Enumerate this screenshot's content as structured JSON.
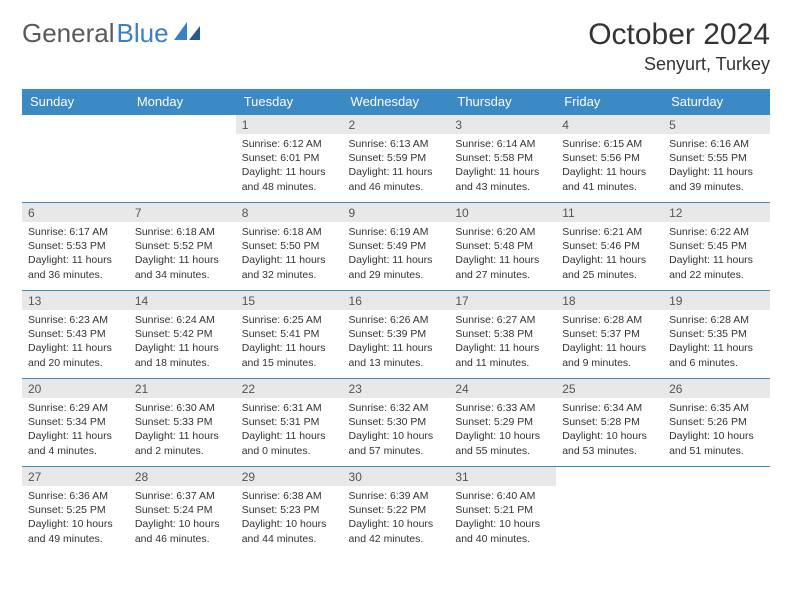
{
  "brand": {
    "part1": "General",
    "part2": "Blue"
  },
  "header": {
    "title": "October 2024",
    "location": "Senyurt, Turkey"
  },
  "colors": {
    "header_bg": "#3b8ac4",
    "header_fg": "#ffffff",
    "daynum_bg": "#e8e8e8",
    "rule": "#3b8ac4",
    "brand_gray": "#5a5a5a",
    "brand_blue": "#3b7fc4"
  },
  "day_names": [
    "Sunday",
    "Monday",
    "Tuesday",
    "Wednesday",
    "Thursday",
    "Friday",
    "Saturday"
  ],
  "weeks": [
    [
      null,
      null,
      {
        "n": "1",
        "sunrise": "6:12 AM",
        "sunset": "6:01 PM",
        "daylight": "11 hours and 48 minutes."
      },
      {
        "n": "2",
        "sunrise": "6:13 AM",
        "sunset": "5:59 PM",
        "daylight": "11 hours and 46 minutes."
      },
      {
        "n": "3",
        "sunrise": "6:14 AM",
        "sunset": "5:58 PM",
        "daylight": "11 hours and 43 minutes."
      },
      {
        "n": "4",
        "sunrise": "6:15 AM",
        "sunset": "5:56 PM",
        "daylight": "11 hours and 41 minutes."
      },
      {
        "n": "5",
        "sunrise": "6:16 AM",
        "sunset": "5:55 PM",
        "daylight": "11 hours and 39 minutes."
      }
    ],
    [
      {
        "n": "6",
        "sunrise": "6:17 AM",
        "sunset": "5:53 PM",
        "daylight": "11 hours and 36 minutes."
      },
      {
        "n": "7",
        "sunrise": "6:18 AM",
        "sunset": "5:52 PM",
        "daylight": "11 hours and 34 minutes."
      },
      {
        "n": "8",
        "sunrise": "6:18 AM",
        "sunset": "5:50 PM",
        "daylight": "11 hours and 32 minutes."
      },
      {
        "n": "9",
        "sunrise": "6:19 AM",
        "sunset": "5:49 PM",
        "daylight": "11 hours and 29 minutes."
      },
      {
        "n": "10",
        "sunrise": "6:20 AM",
        "sunset": "5:48 PM",
        "daylight": "11 hours and 27 minutes."
      },
      {
        "n": "11",
        "sunrise": "6:21 AM",
        "sunset": "5:46 PM",
        "daylight": "11 hours and 25 minutes."
      },
      {
        "n": "12",
        "sunrise": "6:22 AM",
        "sunset": "5:45 PM",
        "daylight": "11 hours and 22 minutes."
      }
    ],
    [
      {
        "n": "13",
        "sunrise": "6:23 AM",
        "sunset": "5:43 PM",
        "daylight": "11 hours and 20 minutes."
      },
      {
        "n": "14",
        "sunrise": "6:24 AM",
        "sunset": "5:42 PM",
        "daylight": "11 hours and 18 minutes."
      },
      {
        "n": "15",
        "sunrise": "6:25 AM",
        "sunset": "5:41 PM",
        "daylight": "11 hours and 15 minutes."
      },
      {
        "n": "16",
        "sunrise": "6:26 AM",
        "sunset": "5:39 PM",
        "daylight": "11 hours and 13 minutes."
      },
      {
        "n": "17",
        "sunrise": "6:27 AM",
        "sunset": "5:38 PM",
        "daylight": "11 hours and 11 minutes."
      },
      {
        "n": "18",
        "sunrise": "6:28 AM",
        "sunset": "5:37 PM",
        "daylight": "11 hours and 9 minutes."
      },
      {
        "n": "19",
        "sunrise": "6:28 AM",
        "sunset": "5:35 PM",
        "daylight": "11 hours and 6 minutes."
      }
    ],
    [
      {
        "n": "20",
        "sunrise": "6:29 AM",
        "sunset": "5:34 PM",
        "daylight": "11 hours and 4 minutes."
      },
      {
        "n": "21",
        "sunrise": "6:30 AM",
        "sunset": "5:33 PM",
        "daylight": "11 hours and 2 minutes."
      },
      {
        "n": "22",
        "sunrise": "6:31 AM",
        "sunset": "5:31 PM",
        "daylight": "11 hours and 0 minutes."
      },
      {
        "n": "23",
        "sunrise": "6:32 AM",
        "sunset": "5:30 PM",
        "daylight": "10 hours and 57 minutes."
      },
      {
        "n": "24",
        "sunrise": "6:33 AM",
        "sunset": "5:29 PM",
        "daylight": "10 hours and 55 minutes."
      },
      {
        "n": "25",
        "sunrise": "6:34 AM",
        "sunset": "5:28 PM",
        "daylight": "10 hours and 53 minutes."
      },
      {
        "n": "26",
        "sunrise": "6:35 AM",
        "sunset": "5:26 PM",
        "daylight": "10 hours and 51 minutes."
      }
    ],
    [
      {
        "n": "27",
        "sunrise": "6:36 AM",
        "sunset": "5:25 PM",
        "daylight": "10 hours and 49 minutes."
      },
      {
        "n": "28",
        "sunrise": "6:37 AM",
        "sunset": "5:24 PM",
        "daylight": "10 hours and 46 minutes."
      },
      {
        "n": "29",
        "sunrise": "6:38 AM",
        "sunset": "5:23 PM",
        "daylight": "10 hours and 44 minutes."
      },
      {
        "n": "30",
        "sunrise": "6:39 AM",
        "sunset": "5:22 PM",
        "daylight": "10 hours and 42 minutes."
      },
      {
        "n": "31",
        "sunrise": "6:40 AM",
        "sunset": "5:21 PM",
        "daylight": "10 hours and 40 minutes."
      },
      null,
      null
    ]
  ],
  "labels": {
    "sunrise": "Sunrise:",
    "sunset": "Sunset:",
    "daylight": "Daylight:"
  }
}
